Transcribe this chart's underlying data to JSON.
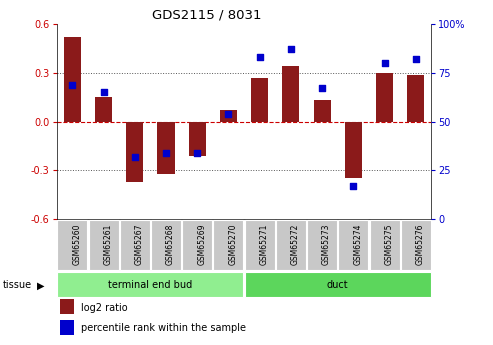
{
  "title": "GDS2115 / 8031",
  "samples": [
    "GSM65260",
    "GSM65261",
    "GSM65267",
    "GSM65268",
    "GSM65269",
    "GSM65270",
    "GSM65271",
    "GSM65272",
    "GSM65273",
    "GSM65274",
    "GSM65275",
    "GSM65276"
  ],
  "log2_ratio": [
    0.52,
    0.15,
    -0.37,
    -0.32,
    -0.21,
    0.07,
    0.27,
    0.34,
    0.13,
    -0.35,
    0.3,
    0.29
  ],
  "percentile_rank": [
    69,
    65,
    32,
    34,
    34,
    54,
    83,
    87,
    67,
    17,
    80,
    82
  ],
  "groups": [
    {
      "label": "terminal end bud",
      "start": 0,
      "end": 6,
      "color": "#90EE90"
    },
    {
      "label": "duct",
      "start": 6,
      "end": 12,
      "color": "#5CD65C"
    }
  ],
  "bar_color": "#8B1A1A",
  "dot_color": "#0000CC",
  "ylim_left": [
    -0.6,
    0.6
  ],
  "ylim_right": [
    0,
    100
  ],
  "yticks_left": [
    -0.6,
    -0.3,
    0.0,
    0.3,
    0.6
  ],
  "yticks_right": [
    0,
    25,
    50,
    75,
    100
  ],
  "bar_width": 0.55,
  "bg_color": "#FFFFFF",
  "zero_line_color": "#CC0000",
  "dot_line_color": "#333333",
  "label_box_color": "#C8C8C8",
  "tissue_label": "tissue",
  "legend_items": [
    {
      "label": "log2 ratio",
      "color": "#8B1A1A"
    },
    {
      "label": "percentile rank within the sample",
      "color": "#0000CC"
    }
  ]
}
